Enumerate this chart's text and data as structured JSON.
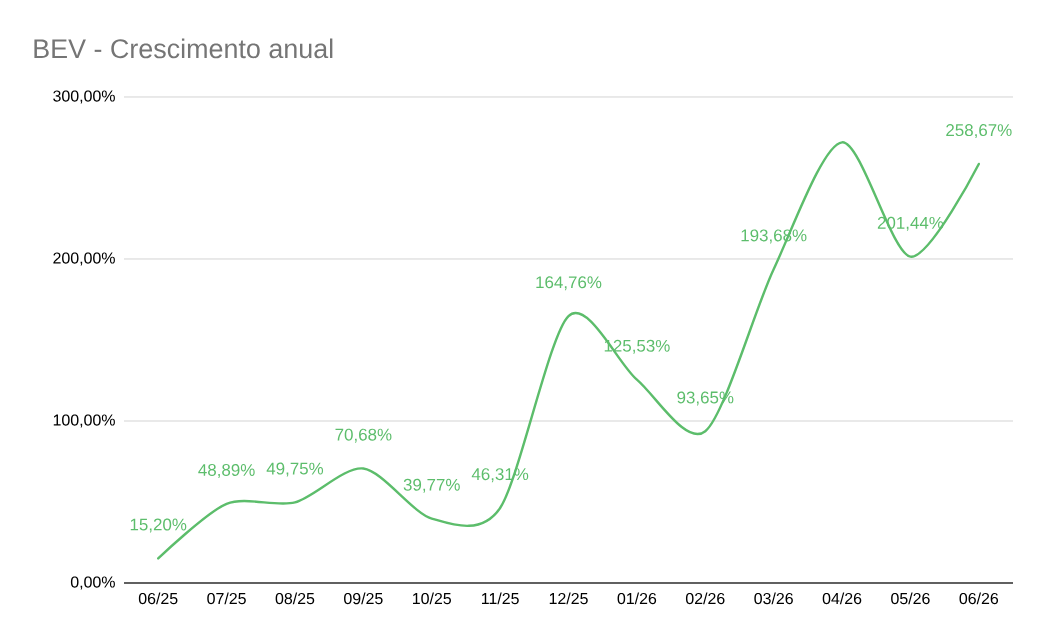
{
  "chart_data": {
    "type": "line",
    "title": "BEV - Crescimento anual",
    "categories": [
      "06/25",
      "07/25",
      "08/25",
      "09/25",
      "10/25",
      "11/25",
      "12/25",
      "01/26",
      "02/26",
      "03/26",
      "04/26",
      "05/26",
      "06/26"
    ],
    "values": [
      15.2,
      48.89,
      49.75,
      70.68,
      39.77,
      46.31,
      164.76,
      125.53,
      93.65,
      193.68,
      272,
      201.44,
      258.67
    ],
    "value_labels": [
      "15,20%",
      "48,89%",
      "49,75%",
      "70,68%",
      "39,77%",
      "46,31%",
      "164,76%",
      "125,53%",
      "93,65%",
      "193,68%",
      null,
      "201,44%",
      "258,67%"
    ],
    "color": "#5cbd6b",
    "ylim": [
      0,
      300
    ],
    "yticks": [
      {
        "value": 0,
        "label": "0,00%"
      },
      {
        "value": 100,
        "label": "100,00%"
      },
      {
        "value": 200,
        "label": "200,00%"
      },
      {
        "value": 300,
        "label": "300,00%"
      }
    ],
    "grid": "y"
  }
}
